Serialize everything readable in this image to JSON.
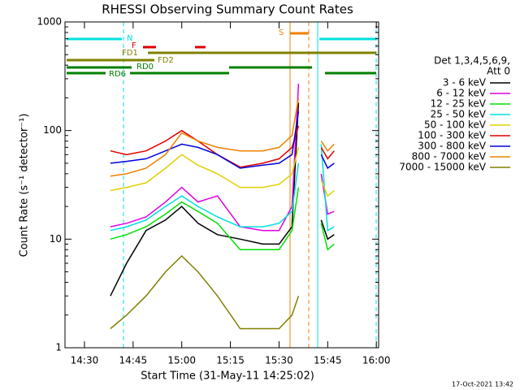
{
  "chart_data": {
    "type": "line",
    "title": "RHESSI Observing Summary Count Rates",
    "xlabel": "Start Time (31-May-11 14:25:02)",
    "ylabel": "Count Rate (s⁻¹ detector⁻¹)",
    "log_y": true,
    "xlim": [
      864,
      960.7
    ],
    "xticks": [
      {
        "value": 870,
        "label": "14:30"
      },
      {
        "value": 885,
        "label": "14:45"
      },
      {
        "value": 900,
        "label": "15:00"
      },
      {
        "value": 915,
        "label": "15:15"
      },
      {
        "value": 930,
        "label": "15:30"
      },
      {
        "value": 945,
        "label": "15:45"
      },
      {
        "value": 960,
        "label": "16:00"
      }
    ],
    "ylim": [
      1,
      1000
    ],
    "yticks": [
      1,
      10,
      100,
      1000
    ],
    "legend_title": [
      "Det 1,3,4,5,6,9,",
      "Att 0"
    ],
    "annotations": [
      "N",
      "F",
      "FD1",
      "FD2",
      "RD0",
      "RD6",
      "S"
    ],
    "footer": "17-Oct-2021 13:42",
    "x": [
      878,
      883,
      889,
      895,
      900,
      905,
      911,
      918,
      925,
      930,
      934,
      936,
      940,
      943,
      945,
      947
    ],
    "series": [
      {
        "name": "3 - 6 keV",
        "color": "#000000",
        "values": [
          3,
          6,
          12,
          15,
          20,
          14,
          11,
          10,
          9,
          9,
          13,
          180,
          null,
          15,
          10,
          11
        ]
      },
      {
        "name": "6 - 12 keV",
        "color": "#e000e0",
        "values": [
          13,
          14,
          16,
          22,
          30,
          22,
          25,
          13,
          12,
          12,
          20,
          270,
          null,
          40,
          17,
          18
        ]
      },
      {
        "name": "12 - 25 keV",
        "color": "#00e000",
        "values": [
          10,
          11,
          13,
          17,
          22,
          18,
          14,
          8,
          8,
          8,
          12,
          30,
          null,
          14,
          8,
          9
        ]
      },
      {
        "name": "25 - 50 keV",
        "color": "#00e0e0",
        "values": [
          12,
          13,
          15,
          20,
          25,
          20,
          16,
          13,
          13,
          14,
          18,
          50,
          null,
          75,
          12,
          13
        ]
      },
      {
        "name": "50 - 100 keV",
        "color": "#e0d000",
        "values": [
          28,
          30,
          33,
          45,
          60,
          48,
          40,
          30,
          30,
          32,
          40,
          70,
          null,
          35,
          25,
          28
        ]
      },
      {
        "name": "100 - 300 keV",
        "color": "#e00000",
        "values": [
          65,
          60,
          65,
          80,
          100,
          80,
          60,
          46,
          50,
          55,
          70,
          110,
          null,
          70,
          55,
          65
        ]
      },
      {
        "name": "300 - 800 keV",
        "color": "#0000e0",
        "values": [
          50,
          52,
          55,
          65,
          75,
          70,
          60,
          45,
          48,
          50,
          60,
          150,
          null,
          60,
          45,
          50
        ]
      },
      {
        "name": "800 - 7000 keV",
        "color": "#f08000",
        "values": [
          38,
          40,
          45,
          60,
          95,
          80,
          70,
          65,
          65,
          70,
          90,
          200,
          null,
          80,
          65,
          75
        ]
      },
      {
        "name": "7000 - 15000 keV",
        "color": "#808000",
        "values": [
          1.5,
          2,
          3,
          5,
          7,
          5,
          3,
          1.5,
          1.5,
          1.5,
          2,
          3,
          null,
          null,
          null,
          null
        ]
      }
    ]
  }
}
